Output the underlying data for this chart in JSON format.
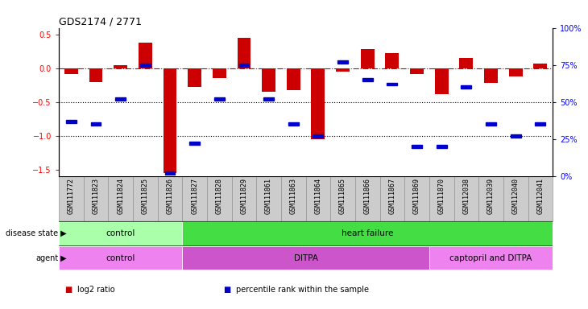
{
  "title": "GDS2174 / 2771",
  "samples": [
    "GSM111772",
    "GSM111823",
    "GSM111824",
    "GSM111825",
    "GSM111826",
    "GSM111827",
    "GSM111828",
    "GSM111829",
    "GSM111861",
    "GSM111863",
    "GSM111864",
    "GSM111865",
    "GSM111866",
    "GSM111867",
    "GSM111869",
    "GSM111870",
    "GSM112038",
    "GSM112039",
    "GSM112040",
    "GSM112041"
  ],
  "log2_ratio": [
    -0.08,
    -0.2,
    0.05,
    0.38,
    -1.55,
    -0.28,
    -0.15,
    0.45,
    -0.35,
    -0.32,
    -1.05,
    -0.05,
    0.28,
    0.22,
    -0.08,
    -0.38,
    0.15,
    -0.22,
    -0.12,
    0.07
  ],
  "percentile": [
    37,
    35,
    52,
    75,
    2,
    22,
    52,
    75,
    52,
    35,
    27,
    77,
    65,
    62,
    20,
    20,
    60,
    35,
    27,
    35
  ],
  "bar_color": "#CC0000",
  "dot_color": "#0000CC",
  "dashed_line_color": "#CC0000",
  "ylim_left": [
    -1.6,
    0.6
  ],
  "ylim_right": [
    0,
    100
  ],
  "yticks_left": [
    -1.5,
    -1.0,
    -0.5,
    0.0,
    0.5
  ],
  "yticks_right": [
    0,
    25,
    50,
    75,
    100
  ],
  "ds_groups": [
    {
      "label": "control",
      "start": 0,
      "end": 5,
      "color": "#AAFFAA"
    },
    {
      "label": "heart failure",
      "start": 5,
      "end": 20,
      "color": "#44DD44"
    }
  ],
  "ag_groups": [
    {
      "label": "control",
      "start": 0,
      "end": 5,
      "color": "#EE82EE"
    },
    {
      "label": "DITPA",
      "start": 5,
      "end": 15,
      "color": "#CC55CC"
    },
    {
      "label": "captopril and DITPA",
      "start": 15,
      "end": 20,
      "color": "#EE82EE"
    }
  ],
  "legend_items": [
    {
      "label": "log2 ratio",
      "color": "#CC0000"
    },
    {
      "label": "percentile rank within the sample",
      "color": "#0000CC"
    }
  ],
  "tick_bg_color": "#CCCCCC",
  "tick_border_color": "#888888"
}
